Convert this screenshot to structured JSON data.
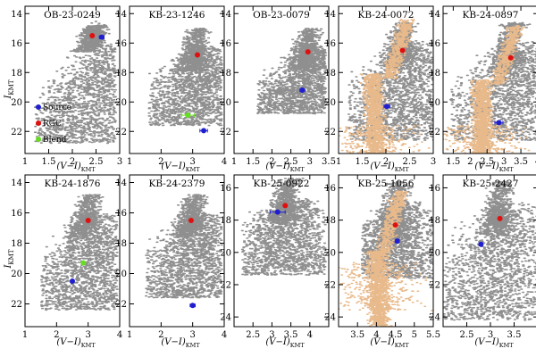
{
  "chart_data": {
    "type": "scatter",
    "description_keys": [
      "x = (V-I)_KMT color",
      "y = I_KMT magnitude (inverted)"
    ],
    "ylabel_main": "I",
    "ylabel_sub": "KMT",
    "xlabel_main": "(V−I)",
    "xlabel_sub": "KMT",
    "legend": [
      {
        "name": "Source",
        "color": "#1f1fd0"
      },
      {
        "name": "RGC",
        "color": "#e01010"
      },
      {
        "name": "Blend",
        "color": "#66dd22"
      }
    ],
    "colors": {
      "field": "#8f8f8f",
      "hst": "#e8b98a",
      "source": "#1f1fd0",
      "rgc": "#e01010",
      "blend": "#66dd22"
    },
    "panels": [
      {
        "title": "OB-23-0249",
        "xlim": [
          1,
          3
        ],
        "ylim": [
          23.5,
          13.5
        ],
        "xticks": [
          1,
          1.5,
          2,
          2.5,
          3
        ],
        "yticks": [
          14,
          16,
          18,
          20,
          22
        ],
        "hst": false,
        "source": {
          "x": 2.62,
          "y": 15.6,
          "xerr": 0.05
        },
        "rgc": {
          "x": 2.42,
          "y": 15.5
        },
        "blend": null,
        "field": {
          "color_min": 1.2,
          "color_max": 2.9,
          "mag_top": 14.8,
          "mag_bottom": 22.8,
          "rc_x": 2.45,
          "rc_y": 15.6,
          "ms_x": 1.55
        }
      },
      {
        "title": "KB-23-1246",
        "xlim": [
          1,
          4
        ],
        "ylim": [
          23.5,
          13.5
        ],
        "xticks": [
          1,
          2,
          3,
          4
        ],
        "yticks": [
          14,
          16,
          18,
          20,
          22
        ],
        "hst": false,
        "source": {
          "x": 3.35,
          "y": 21.95,
          "xerr": 0.12
        },
        "rgc": {
          "x": 3.15,
          "y": 16.8
        },
        "blend": {
          "x": 2.85,
          "y": 20.9,
          "xerr": 0.2
        },
        "field": {
          "color_min": 1.6,
          "color_max": 3.9,
          "mag_top": 15.0,
          "mag_bottom": 21.6,
          "rc_x": 3.1,
          "rc_y": 16.9,
          "ms_x": 2.2
        }
      },
      {
        "title": "OB-23-0079",
        "xlim": [
          1,
          3.5
        ],
        "ylim": [
          23.5,
          13.5
        ],
        "xticks": [
          1,
          1.5,
          2,
          2.5,
          3,
          3.5
        ],
        "yticks": [
          14,
          16,
          18,
          20,
          22
        ],
        "hst": false,
        "source": {
          "x": 2.8,
          "y": 19.2,
          "xerr": 0.06
        },
        "rgc": {
          "x": 2.95,
          "y": 16.6
        },
        "blend": null,
        "field": {
          "color_min": 1.6,
          "color_max": 3.4,
          "mag_top": 15.0,
          "mag_bottom": 20.8,
          "rc_x": 2.95,
          "rc_y": 16.8,
          "ms_x": 2.2
        }
      },
      {
        "title": "KB-24-0072",
        "xlim": [
          1,
          3
        ],
        "ylim": [
          23.5,
          13.5
        ],
        "xticks": [
          1,
          1.5,
          2,
          2.5,
          3
        ],
        "yticks": [
          14,
          16,
          18,
          20,
          22
        ],
        "hst": true,
        "source": {
          "x": 2.02,
          "y": 20.3,
          "xerr": 0.06
        },
        "rgc": {
          "x": 2.35,
          "y": 16.5
        },
        "blend": null,
        "field": {
          "color_min": 1.2,
          "color_max": 3.0,
          "mag_top": 14.6,
          "mag_bottom": 22.6,
          "rc_x": 2.35,
          "rc_y": 16.6,
          "ms_x": 1.7
        }
      },
      {
        "title": "KB-24-0897",
        "xlim": [
          1.2,
          4
        ],
        "ylim": [
          23.5,
          13.5
        ],
        "xticks": [
          1.5,
          2,
          2.5,
          3,
          3.5,
          4
        ],
        "yticks": [
          14,
          16,
          18,
          20,
          22
        ],
        "hst": true,
        "source": {
          "x": 2.85,
          "y": 21.4,
          "xerr": 0.12
        },
        "rgc": {
          "x": 3.2,
          "y": 17.0
        },
        "blend": null,
        "field": {
          "color_min": 1.4,
          "color_max": 4.0,
          "mag_top": 14.6,
          "mag_bottom": 22.6,
          "rc_x": 3.2,
          "rc_y": 17.0,
          "ms_x": 2.3
        }
      },
      {
        "title": "KB-24-1876",
        "xlim": [
          1,
          4
        ],
        "ylim": [
          23.5,
          13.5
        ],
        "xticks": [
          1,
          2,
          3,
          4
        ],
        "yticks": [
          14,
          16,
          18,
          20,
          22
        ],
        "hst": false,
        "source": {
          "x": 2.5,
          "y": 20.5,
          "xerr": 0.05
        },
        "rgc": {
          "x": 3.0,
          "y": 16.5
        },
        "blend": {
          "x": 2.85,
          "y": 19.3,
          "xerr": 0.0
        },
        "field": {
          "color_min": 1.5,
          "color_max": 3.9,
          "mag_top": 14.8,
          "mag_bottom": 22.4,
          "rc_x": 3.0,
          "rc_y": 16.6,
          "ms_x": 2.2
        }
      },
      {
        "title": "KB-24-2379",
        "xlim": [
          1,
          4
        ],
        "ylim": [
          23.5,
          13.5
        ],
        "xticks": [
          1,
          2,
          3,
          4
        ],
        "yticks": [
          14,
          16,
          18,
          20,
          22
        ],
        "hst": false,
        "source": {
          "x": 3.0,
          "y": 22.1,
          "xerr": 0.08
        },
        "rgc": {
          "x": 2.95,
          "y": 16.5
        },
        "blend": null,
        "field": {
          "color_min": 1.5,
          "color_max": 3.9,
          "mag_top": 14.8,
          "mag_bottom": 21.6,
          "rc_x": 3.0,
          "rc_y": 16.6,
          "ms_x": 2.2
        }
      },
      {
        "title": "KB-25-0922",
        "xlim": [
          2,
          4.5
        ],
        "ylim": [
          24.6,
          15.2
        ],
        "xticks": [
          2.5,
          3,
          3.5,
          4
        ],
        "yticks": [
          16,
          18,
          20,
          22,
          24
        ],
        "hst": false,
        "source": {
          "x": 3.15,
          "y": 17.5,
          "xerr": 0.2
        },
        "rgc": {
          "x": 3.35,
          "y": 17.1
        },
        "blend": null,
        "field": {
          "color_min": 2.2,
          "color_max": 4.4,
          "mag_top": 15.4,
          "mag_bottom": 21.4,
          "rc_x": 3.4,
          "rc_y": 17.2,
          "ms_x": 2.9
        }
      },
      {
        "title": "KB-25-1056",
        "xlim": [
          3,
          5.5
        ],
        "ylim": [
          24.6,
          15.2
        ],
        "xticks": [
          3.5,
          4,
          4.5,
          5,
          5.5
        ],
        "yticks": [
          16,
          18,
          20,
          22,
          24
        ],
        "hst": true,
        "source": {
          "x": 4.55,
          "y": 19.3,
          "xerr": 0.05
        },
        "rgc": {
          "x": 4.5,
          "y": 18.3
        },
        "blend": null,
        "field": {
          "color_min": 3.6,
          "color_max": 5.5,
          "mag_top": 15.6,
          "mag_bottom": 21.6,
          "rc_x": 4.5,
          "rc_y": 18.4,
          "ms_x": 4.0
        }
      },
      {
        "title": "KB-25-2427",
        "xlim": [
          2,
          4
        ],
        "ylim": [
          24.6,
          15.2
        ],
        "xticks": [
          2.5,
          3,
          3.5
        ],
        "yticks": [
          16,
          18,
          20,
          22,
          24
        ],
        "hst": false,
        "source": {
          "x": 2.8,
          "y": 19.5,
          "xerr": 0.03
        },
        "rgc": {
          "x": 3.2,
          "y": 17.9
        },
        "blend": null,
        "field": {
          "color_min": 2.0,
          "color_max": 4.0,
          "mag_top": 15.6,
          "mag_bottom": 24.2,
          "rc_x": 3.2,
          "rc_y": 18.0,
          "ms_x": 2.5
        }
      }
    ]
  }
}
